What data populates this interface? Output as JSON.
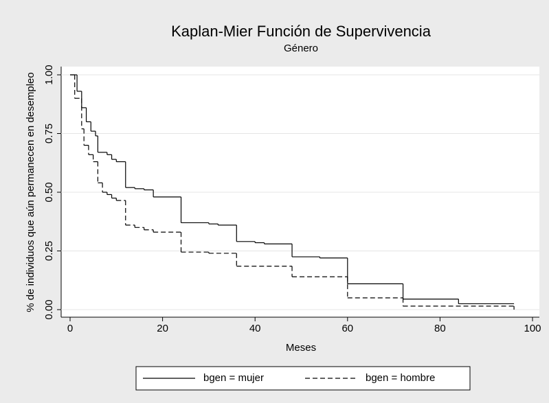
{
  "chart_data": {
    "type": "step",
    "title": "Kaplan-Mier Función de Supervivencia",
    "subtitle": "Género",
    "x_label": "Meses",
    "y_label": "% de individuos que aún permanecen en desempleo",
    "xlim": [
      0,
      100
    ],
    "xticks": [
      0,
      20,
      40,
      60,
      80,
      100
    ],
    "ylim": [
      0,
      1
    ],
    "yticks": [
      {
        "value": 0,
        "label": "0.00"
      },
      {
        "value": 0.25,
        "label": "0.25"
      },
      {
        "value": 0.5,
        "label": "0.50"
      },
      {
        "value": 0.75,
        "label": "0.75"
      },
      {
        "value": 1,
        "label": "1.00"
      }
    ],
    "legend": "bottom",
    "series": [
      {
        "name": "bgen = mujer",
        "color": "#000000",
        "dash": "solid",
        "x": [
          0,
          1.5,
          2.5,
          3.5,
          4.5,
          5.5,
          6,
          8,
          9,
          10,
          12,
          14,
          16,
          18,
          24,
          30,
          32,
          36,
          40,
          42,
          48,
          54,
          60,
          72,
          84,
          96
        ],
        "values": [
          1,
          0.93,
          0.86,
          0.8,
          0.76,
          0.74,
          0.67,
          0.66,
          0.64,
          0.63,
          0.52,
          0.515,
          0.51,
          0.48,
          0.37,
          0.365,
          0.36,
          0.29,
          0.285,
          0.28,
          0.225,
          0.22,
          0.11,
          0.045,
          0.025,
          0.025
        ]
      },
      {
        "name": "bgen = hombre",
        "color": "#000000",
        "dash": "dashed",
        "x": [
          0,
          1,
          2.5,
          3,
          4,
          5,
          6,
          7,
          8,
          9,
          10,
          12,
          14,
          16,
          18,
          24,
          30,
          36,
          48,
          60,
          72,
          96
        ],
        "values": [
          1,
          0.9,
          0.77,
          0.7,
          0.66,
          0.63,
          0.54,
          0.5,
          0.49,
          0.475,
          0.465,
          0.36,
          0.35,
          0.34,
          0.33,
          0.245,
          0.24,
          0.185,
          0.14,
          0.05,
          0.015,
          0
        ]
      }
    ]
  }
}
